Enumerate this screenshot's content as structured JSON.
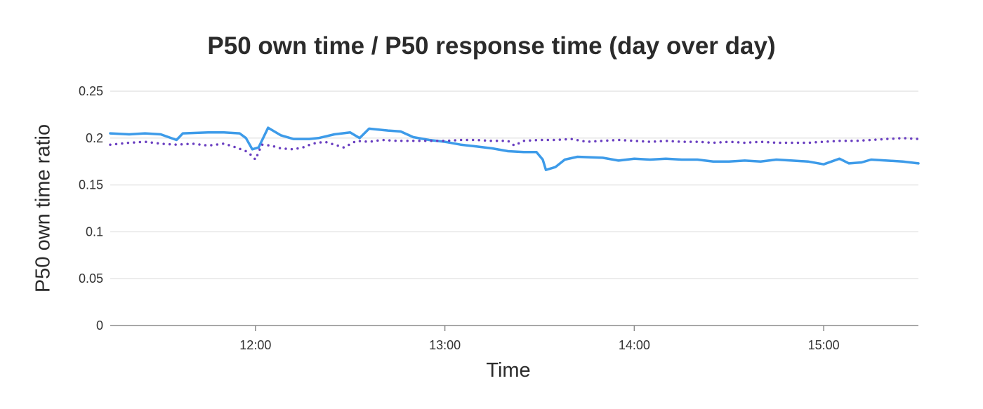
{
  "chart_data": {
    "type": "line",
    "title": "P50 own time / P50 response time (day over day)",
    "xlabel": "Time",
    "ylabel": "P50 own time ratio",
    "ylim": [
      0,
      0.25
    ],
    "xlim": [
      "11:14",
      "15:30"
    ],
    "yticks": [
      "0",
      "0.05",
      "0.1",
      "0.15",
      "0.2",
      "0.25"
    ],
    "xticks": [
      "12:00",
      "13:00",
      "14:00",
      "15:00"
    ],
    "grid": true,
    "legend": "none",
    "series": [
      {
        "style": "solid",
        "color": "#3d9be9",
        "points": [
          [
            "11:14",
            0.205
          ],
          [
            "11:20",
            0.204
          ],
          [
            "11:25",
            0.205
          ],
          [
            "11:30",
            0.204
          ],
          [
            "11:35",
            0.198
          ],
          [
            "11:37",
            0.205
          ],
          [
            "11:45",
            0.206
          ],
          [
            "11:50",
            0.206
          ],
          [
            "11:55",
            0.205
          ],
          [
            "11:57",
            0.2
          ],
          [
            "11:59",
            0.188
          ],
          [
            "12:01",
            0.19
          ],
          [
            "12:04",
            0.211
          ],
          [
            "12:08",
            0.203
          ],
          [
            "12:12",
            0.199
          ],
          [
            "12:17",
            0.199
          ],
          [
            "12:20",
            0.2
          ],
          [
            "12:25",
            0.204
          ],
          [
            "12:30",
            0.206
          ],
          [
            "12:33",
            0.2
          ],
          [
            "12:36",
            0.21
          ],
          [
            "12:42",
            0.208
          ],
          [
            "12:46",
            0.207
          ],
          [
            "12:50",
            0.201
          ],
          [
            "12:55",
            0.198
          ],
          [
            "13:00",
            0.196
          ],
          [
            "13:05",
            0.193
          ],
          [
            "13:10",
            0.191
          ],
          [
            "13:15",
            0.189
          ],
          [
            "13:20",
            0.186
          ],
          [
            "13:25",
            0.185
          ],
          [
            "13:29",
            0.185
          ],
          [
            "13:31",
            0.177
          ],
          [
            "13:32",
            0.166
          ],
          [
            "13:35",
            0.169
          ],
          [
            "13:38",
            0.177
          ],
          [
            "13:42",
            0.18
          ],
          [
            "13:50",
            0.179
          ],
          [
            "13:55",
            0.176
          ],
          [
            "14:00",
            0.178
          ],
          [
            "14:05",
            0.177
          ],
          [
            "14:10",
            0.178
          ],
          [
            "14:15",
            0.177
          ],
          [
            "14:20",
            0.177
          ],
          [
            "14:25",
            0.175
          ],
          [
            "14:30",
            0.175
          ],
          [
            "14:35",
            0.176
          ],
          [
            "14:40",
            0.175
          ],
          [
            "14:45",
            0.177
          ],
          [
            "14:50",
            0.176
          ],
          [
            "14:55",
            0.175
          ],
          [
            "15:00",
            0.172
          ],
          [
            "15:05",
            0.178
          ],
          [
            "15:08",
            0.173
          ],
          [
            "15:12",
            0.174
          ],
          [
            "15:15",
            0.177
          ],
          [
            "15:20",
            0.176
          ],
          [
            "15:25",
            0.175
          ],
          [
            "15:30",
            0.173
          ]
        ]
      },
      {
        "style": "dotted",
        "color": "#6a3fc1",
        "points": [
          [
            "11:14",
            0.193
          ],
          [
            "11:20",
            0.195
          ],
          [
            "11:25",
            0.196
          ],
          [
            "11:30",
            0.194
          ],
          [
            "11:35",
            0.193
          ],
          [
            "11:40",
            0.194
          ],
          [
            "11:45",
            0.192
          ],
          [
            "11:50",
            0.194
          ],
          [
            "11:53",
            0.191
          ],
          [
            "11:57",
            0.186
          ],
          [
            "11:59",
            0.181
          ],
          [
            "12:00",
            0.177
          ],
          [
            "12:02",
            0.193
          ],
          [
            "12:05",
            0.192
          ],
          [
            "12:08",
            0.189
          ],
          [
            "12:12",
            0.188
          ],
          [
            "12:15",
            0.19
          ],
          [
            "12:18",
            0.194
          ],
          [
            "12:22",
            0.196
          ],
          [
            "12:25",
            0.193
          ],
          [
            "12:28",
            0.19
          ],
          [
            "12:32",
            0.197
          ],
          [
            "12:36",
            0.196
          ],
          [
            "12:40",
            0.198
          ],
          [
            "12:45",
            0.197
          ],
          [
            "12:50",
            0.197
          ],
          [
            "12:55",
            0.197
          ],
          [
            "13:00",
            0.197
          ],
          [
            "13:05",
            0.198
          ],
          [
            "13:10",
            0.198
          ],
          [
            "13:15",
            0.197
          ],
          [
            "13:20",
            0.197
          ],
          [
            "13:22",
            0.192
          ],
          [
            "13:25",
            0.197
          ],
          [
            "13:30",
            0.198
          ],
          [
            "13:35",
            0.198
          ],
          [
            "13:40",
            0.199
          ],
          [
            "13:45",
            0.196
          ],
          [
            "13:50",
            0.197
          ],
          [
            "13:55",
            0.198
          ],
          [
            "14:00",
            0.197
          ],
          [
            "14:05",
            0.196
          ],
          [
            "14:10",
            0.197
          ],
          [
            "14:15",
            0.196
          ],
          [
            "14:20",
            0.196
          ],
          [
            "14:25",
            0.195
          ],
          [
            "14:30",
            0.196
          ],
          [
            "14:35",
            0.195
          ],
          [
            "14:40",
            0.196
          ],
          [
            "14:45",
            0.195
          ],
          [
            "14:50",
            0.195
          ],
          [
            "14:55",
            0.195
          ],
          [
            "15:00",
            0.196
          ],
          [
            "15:05",
            0.197
          ],
          [
            "15:10",
            0.197
          ],
          [
            "15:15",
            0.198
          ],
          [
            "15:20",
            0.199
          ],
          [
            "15:25",
            0.2
          ],
          [
            "15:30",
            0.199
          ]
        ]
      }
    ]
  }
}
